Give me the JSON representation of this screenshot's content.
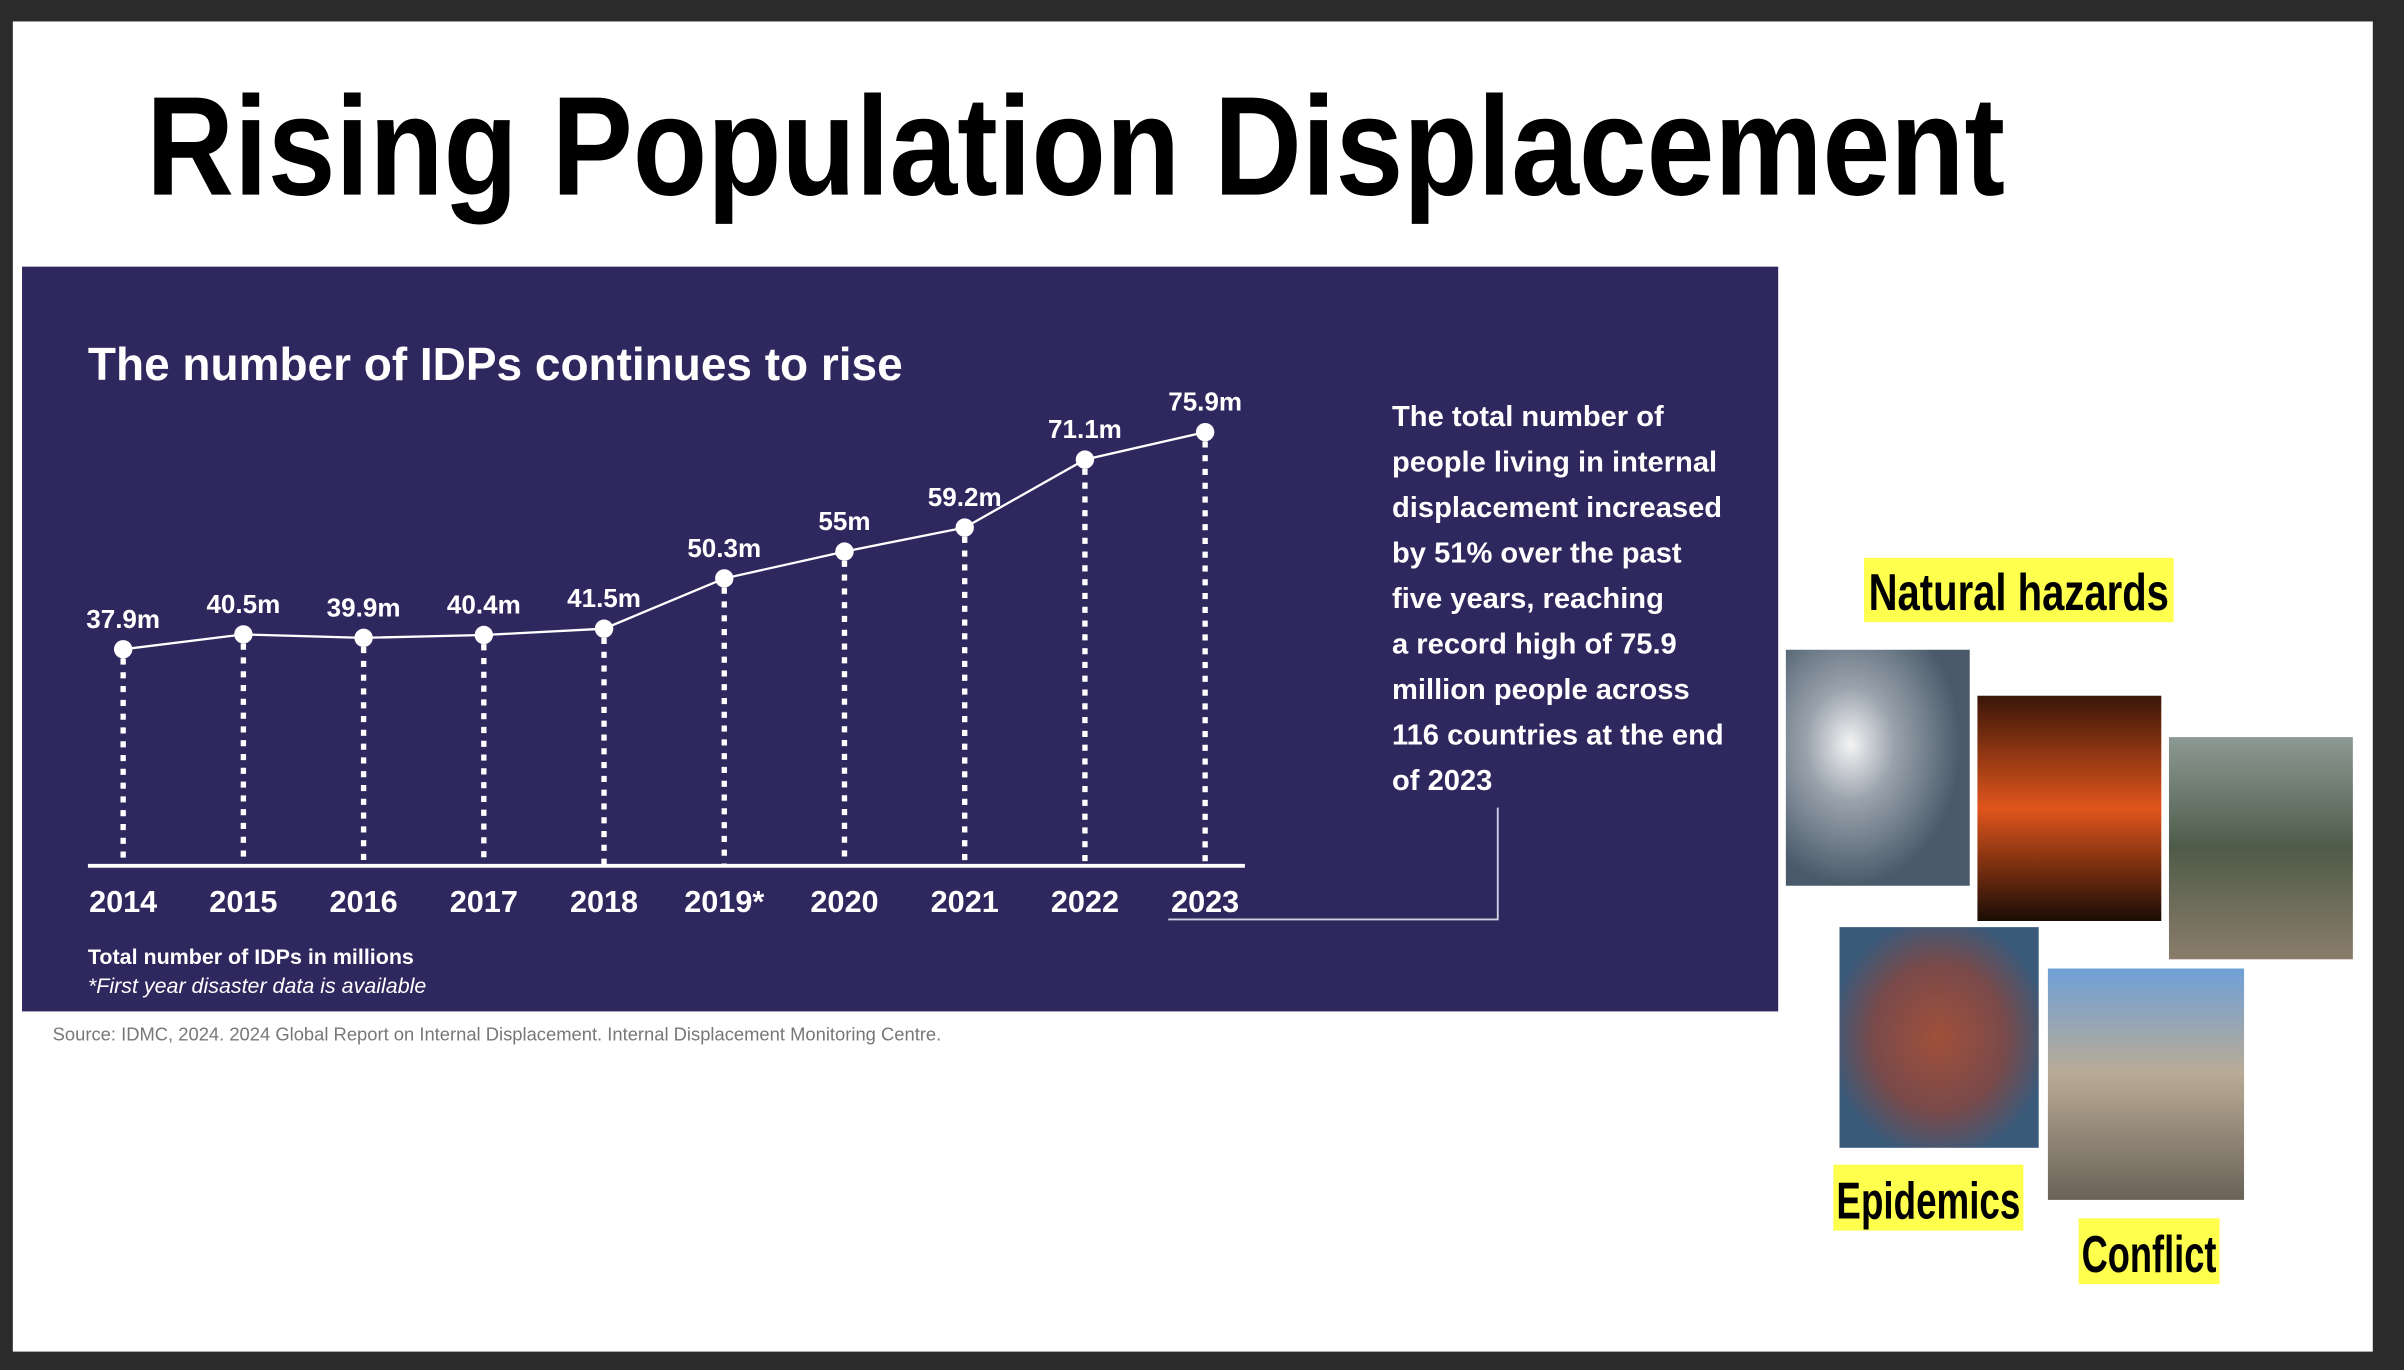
{
  "slide_title": "Rising Population Displacement",
  "chart_data": {
    "type": "line",
    "title": "The number of IDPs continues to rise",
    "categories": [
      "2014",
      "2015",
      "2016",
      "2017",
      "2018",
      "2019*",
      "2020",
      "2021",
      "2022",
      "2023"
    ],
    "values": [
      37.9,
      40.5,
      39.9,
      40.4,
      41.5,
      50.3,
      55,
      59.2,
      71.1,
      75.9
    ],
    "value_labels": [
      "37.9m",
      "40.5m",
      "39.9m",
      "40.4m",
      "41.5m",
      "50.3m",
      "55m",
      "59.2m",
      "71.1m",
      "75.9m"
    ],
    "color": "#ffffff",
    "annotation": [
      "The total number of",
      "people living in internal",
      "displacement increased",
      "by 51% over the past",
      "five years, reaching",
      "a record high of 75.9",
      "million people across",
      "116 countries at the end",
      "of 2023"
    ],
    "notes": [
      "Total number of IDPs in millions",
      "*First year disaster data is available"
    ]
  },
  "source": "Source: IDMC, 2024. 2024 Global Report on Internal Displacement. Internal Displacement Monitoring Centre.",
  "image_labels": [
    "Natural hazards",
    "Epidemics",
    "Conflict"
  ]
}
